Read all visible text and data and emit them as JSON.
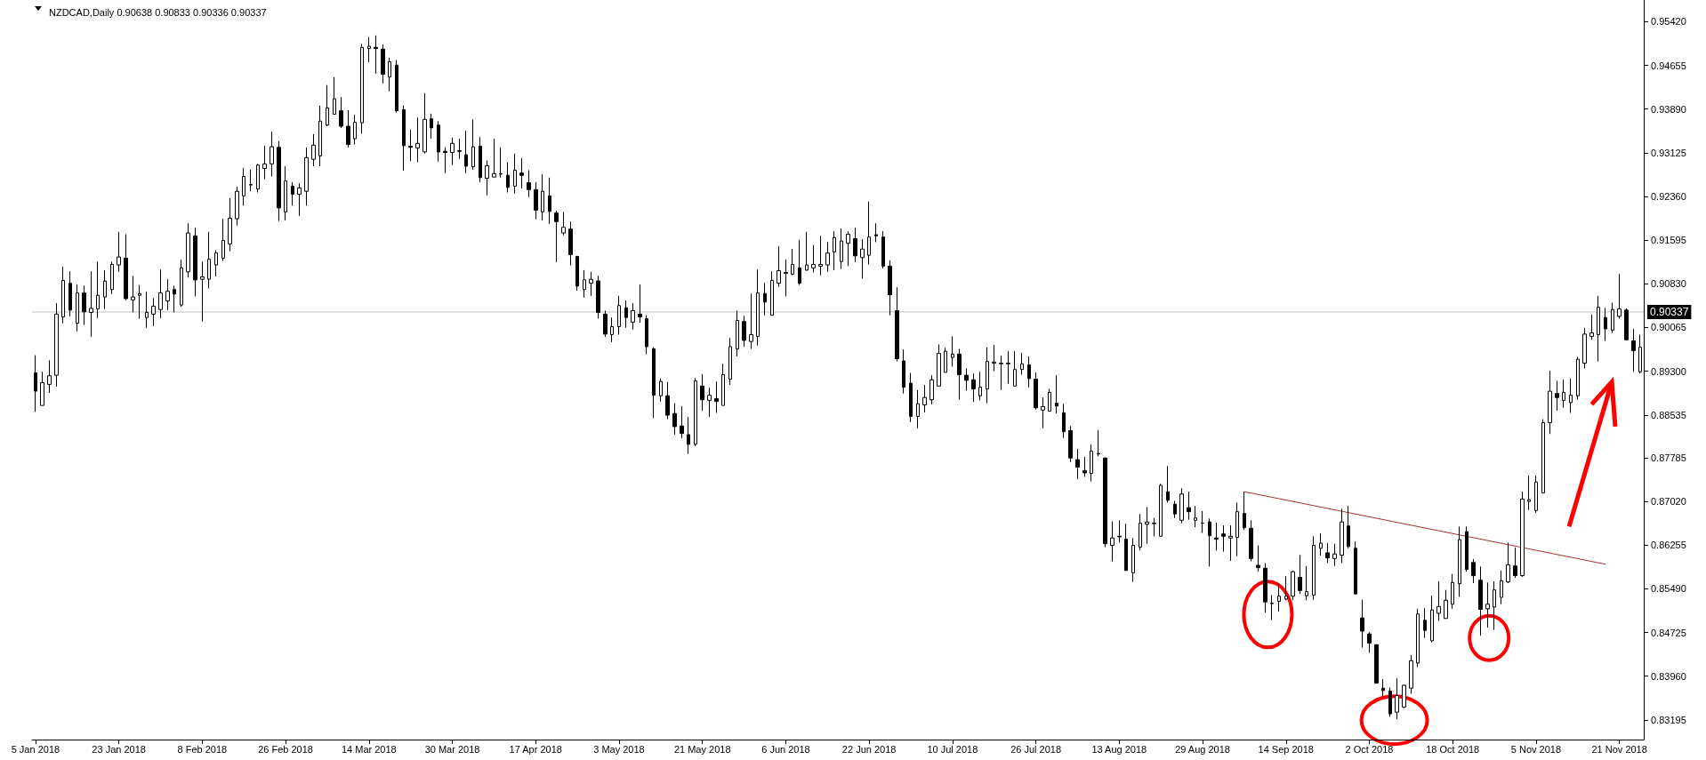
{
  "chart_data": {
    "type": "candlestick",
    "title": "NZDCAD,Daily 0.90638 0.90833 0.90336 0.90337",
    "categories": [
      "5 Jan 2018",
      null,
      null,
      null,
      null,
      null,
      null,
      null,
      null,
      null,
      null,
      null,
      "23 Jan 2018",
      null,
      null,
      null,
      null,
      null,
      null,
      null,
      null,
      null,
      null,
      null,
      "8 Feb 2018",
      null,
      null,
      null,
      null,
      null,
      null,
      null,
      null,
      null,
      null,
      null,
      "26 Feb 2018",
      null,
      null,
      null,
      null,
      null,
      null,
      null,
      null,
      null,
      null,
      null,
      "14 Mar 2018",
      null,
      null,
      null,
      null,
      null,
      null,
      null,
      null,
      null,
      null,
      null,
      "30 Mar 2018",
      null,
      null,
      null,
      null,
      null,
      null,
      null,
      null,
      null,
      null,
      null,
      "17 Apr 2018",
      null,
      null,
      null,
      null,
      null,
      null,
      null,
      null,
      null,
      null,
      null,
      "3 May 2018",
      null,
      null,
      null,
      null,
      null,
      null,
      null,
      null,
      null,
      null,
      null,
      "21 May 2018",
      null,
      null,
      null,
      null,
      null,
      null,
      null,
      null,
      null,
      null,
      null,
      "6 Jun 2018",
      null,
      null,
      null,
      null,
      null,
      null,
      null,
      null,
      null,
      null,
      null,
      "22 Jun 2018",
      null,
      null,
      null,
      null,
      null,
      null,
      null,
      null,
      null,
      null,
      null,
      "10 Jul 2018",
      null,
      null,
      null,
      null,
      null,
      null,
      null,
      null,
      null,
      null,
      null,
      "26 Jul 2018",
      null,
      null,
      null,
      null,
      null,
      null,
      null,
      null,
      null,
      null,
      null,
      "13 Aug 2018",
      null,
      null,
      null,
      null,
      null,
      null,
      null,
      null,
      null,
      null,
      null,
      "29 Aug 2018",
      null,
      null,
      null,
      null,
      null,
      null,
      null,
      null,
      null,
      null,
      null,
      "14 Sep 2018",
      null,
      null,
      null,
      null,
      null,
      null,
      null,
      null,
      null,
      null,
      null,
      "2 Oct 2018",
      null,
      null,
      null,
      null,
      null,
      null,
      null,
      null,
      null,
      null,
      null,
      "18 Oct 2018",
      null,
      null,
      null,
      null,
      null,
      null,
      null,
      null,
      null,
      null,
      null,
      "5 Nov 2018",
      null,
      null,
      null,
      null,
      null,
      null,
      null,
      null,
      null,
      null,
      null,
      "21 Nov 2018",
      null,
      null,
      null
    ],
    "ohlc": [
      [
        0.8927,
        0.8958,
        0.8859,
        0.8895
      ],
      [
        0.887,
        0.8929,
        0.887,
        0.891
      ],
      [
        0.8907,
        0.8949,
        0.8892,
        0.8922
      ],
      [
        0.8923,
        0.9049,
        0.8903,
        0.903
      ],
      [
        0.9025,
        0.9113,
        0.9014,
        0.9089
      ],
      [
        0.9084,
        0.9105,
        0.9026,
        0.9037
      ],
      [
        0.9014,
        0.9082,
        0.9,
        0.9067
      ],
      [
        0.9067,
        0.908,
        0.9011,
        0.9034
      ],
      [
        0.9033,
        0.9105,
        0.899,
        0.904
      ],
      [
        0.9039,
        0.9122,
        0.9023,
        0.9063
      ],
      [
        0.906,
        0.9107,
        0.9039,
        0.9088
      ],
      [
        0.9073,
        0.9122,
        0.9065,
        0.9117
      ],
      [
        0.9116,
        0.9174,
        0.9104,
        0.913
      ],
      [
        0.9128,
        0.917,
        0.9054,
        0.9057
      ],
      [
        0.9055,
        0.9097,
        0.9033,
        0.906
      ],
      [
        0.9063,
        0.9081,
        0.9022,
        0.9066
      ],
      [
        0.9024,
        0.9069,
        0.9006,
        0.9033
      ],
      [
        0.903,
        0.9058,
        0.9009,
        0.9044
      ],
      [
        0.9038,
        0.9108,
        0.9023,
        0.9067
      ],
      [
        0.9053,
        0.9091,
        0.9037,
        0.907
      ],
      [
        0.9073,
        0.908,
        0.9033,
        0.9065
      ],
      [
        0.9046,
        0.9125,
        0.9043,
        0.9111
      ],
      [
        0.9104,
        0.9189,
        0.9094,
        0.9172
      ],
      [
        0.9167,
        0.9181,
        0.9061,
        0.909
      ],
      [
        0.9091,
        0.9122,
        0.9017,
        0.9095
      ],
      [
        0.9091,
        0.9174,
        0.9075,
        0.9126
      ],
      [
        0.9116,
        0.9142,
        0.9096,
        0.9137
      ],
      [
        0.9128,
        0.9197,
        0.9123,
        0.9159
      ],
      [
        0.9153,
        0.9233,
        0.914,
        0.9198
      ],
      [
        0.9197,
        0.9253,
        0.9185,
        0.9245
      ],
      [
        0.9237,
        0.9286,
        0.922,
        0.9271
      ],
      [
        0.9256,
        0.9283,
        0.9245,
        0.9257
      ],
      [
        0.9249,
        0.9293,
        0.9243,
        0.9291
      ],
      [
        0.9285,
        0.9325,
        0.9266,
        0.9293
      ],
      [
        0.9293,
        0.935,
        0.9271,
        0.9323
      ],
      [
        0.9322,
        0.9333,
        0.9193,
        0.9216
      ],
      [
        0.9209,
        0.9289,
        0.9194,
        0.9263
      ],
      [
        0.9254,
        0.9261,
        0.922,
        0.924
      ],
      [
        0.924,
        0.9259,
        0.9202,
        0.9251
      ],
      [
        0.9245,
        0.9322,
        0.922,
        0.9304
      ],
      [
        0.9301,
        0.9345,
        0.9289,
        0.9326
      ],
      [
        0.9307,
        0.9395,
        0.9289,
        0.9368
      ],
      [
        0.9361,
        0.9431,
        0.9359,
        0.9391
      ],
      [
        0.938,
        0.9445,
        0.938,
        0.9407
      ],
      [
        0.9386,
        0.941,
        0.9356,
        0.9359
      ],
      [
        0.9359,
        0.9387,
        0.9322,
        0.9327
      ],
      [
        0.9337,
        0.9379,
        0.9327,
        0.9366
      ],
      [
        0.9365,
        0.9503,
        0.9346,
        0.9497
      ],
      [
        0.9495,
        0.9515,
        0.9471,
        0.9499
      ],
      [
        0.9497,
        0.9518,
        0.9451,
        0.9495
      ],
      [
        0.9494,
        0.9502,
        0.9434,
        0.945
      ],
      [
        0.9445,
        0.9479,
        0.942,
        0.9472
      ],
      [
        0.9466,
        0.9475,
        0.9383,
        0.9386
      ],
      [
        0.9388,
        0.9395,
        0.9281,
        0.9325
      ],
      [
        0.9324,
        0.9353,
        0.9298,
        0.9322
      ],
      [
        0.9321,
        0.9374,
        0.9296,
        0.9329
      ],
      [
        0.9314,
        0.9417,
        0.9311,
        0.9371
      ],
      [
        0.9372,
        0.9381,
        0.9337,
        0.9356
      ],
      [
        0.9361,
        0.9368,
        0.9297,
        0.9314
      ],
      [
        0.9315,
        0.9322,
        0.9277,
        0.9313
      ],
      [
        0.9313,
        0.9339,
        0.9291,
        0.9329
      ],
      [
        0.9316,
        0.9337,
        0.9302,
        0.9315
      ],
      [
        0.9309,
        0.9351,
        0.9277,
        0.9289
      ],
      [
        0.9288,
        0.9371,
        0.9283,
        0.9323
      ],
      [
        0.9324,
        0.934,
        0.9261,
        0.9269
      ],
      [
        0.9268,
        0.9299,
        0.9238,
        0.929
      ],
      [
        0.927,
        0.9337,
        0.927,
        0.9276
      ],
      [
        0.9275,
        0.9322,
        0.9269,
        0.9276
      ],
      [
        0.9273,
        0.9296,
        0.9243,
        0.9252
      ],
      [
        0.9254,
        0.9311,
        0.9241,
        0.9282
      ],
      [
        0.9277,
        0.9303,
        0.925,
        0.9273
      ],
      [
        0.926,
        0.9282,
        0.9235,
        0.9248
      ],
      [
        0.9248,
        0.9261,
        0.9196,
        0.9212
      ],
      [
        0.9209,
        0.9275,
        0.9194,
        0.9245
      ],
      [
        0.9237,
        0.9269,
        0.9188,
        0.921
      ],
      [
        0.9207,
        0.9211,
        0.9121,
        0.9192
      ],
      [
        0.9172,
        0.9209,
        0.9168,
        0.9182
      ],
      [
        0.9179,
        0.9192,
        0.9115,
        0.9134
      ],
      [
        0.9131,
        0.9132,
        0.9071,
        0.9079
      ],
      [
        0.9073,
        0.9107,
        0.9059,
        0.909
      ],
      [
        0.9084,
        0.9104,
        0.9062,
        0.9091
      ],
      [
        0.9088,
        0.9097,
        0.9022,
        0.9033
      ],
      [
        0.903,
        0.9036,
        0.899,
        0.8995
      ],
      [
        0.8994,
        0.9024,
        0.8981,
        0.9008
      ],
      [
        0.9008,
        0.9062,
        0.8994,
        0.9045
      ],
      [
        0.9041,
        0.9054,
        0.9006,
        0.9024
      ],
      [
        0.9016,
        0.9049,
        0.9003,
        0.9036
      ],
      [
        0.903,
        0.9082,
        0.9015,
        0.9025
      ],
      [
        0.9022,
        0.9028,
        0.896,
        0.8973
      ],
      [
        0.8969,
        0.8972,
        0.8848,
        0.8888
      ],
      [
        0.8887,
        0.8917,
        0.8877,
        0.8912
      ],
      [
        0.8887,
        0.8911,
        0.8846,
        0.8853
      ],
      [
        0.8856,
        0.8874,
        0.8819,
        0.8833
      ],
      [
        0.8834,
        0.8869,
        0.8813,
        0.8821
      ],
      [
        0.8819,
        0.885,
        0.8785,
        0.8802
      ],
      [
        0.8802,
        0.8918,
        0.8799,
        0.8913
      ],
      [
        0.8904,
        0.8925,
        0.8861,
        0.888
      ],
      [
        0.8879,
        0.8901,
        0.885,
        0.8888
      ],
      [
        0.8882,
        0.8912,
        0.8857,
        0.8877
      ],
      [
        0.887,
        0.8943,
        0.887,
        0.8924
      ],
      [
        0.8916,
        0.8988,
        0.8906,
        0.8973
      ],
      [
        0.8969,
        0.9036,
        0.8956,
        0.9019
      ],
      [
        0.9017,
        0.9027,
        0.8973,
        0.8984
      ],
      [
        0.8982,
        0.9066,
        0.8969,
        0.8994
      ],
      [
        0.8991,
        0.9108,
        0.8975,
        0.9067
      ],
      [
        0.9066,
        0.9085,
        0.9028,
        0.9051
      ],
      [
        0.9028,
        0.9105,
        0.9028,
        0.9089
      ],
      [
        0.9084,
        0.9149,
        0.9078,
        0.9106
      ],
      [
        0.9101,
        0.9126,
        0.9061,
        0.9103
      ],
      [
        0.91,
        0.9144,
        0.9098,
        0.9117
      ],
      [
        0.9111,
        0.916,
        0.9081,
        0.9084
      ],
      [
        0.9107,
        0.9174,
        0.9106,
        0.9116
      ],
      [
        0.9111,
        0.9151,
        0.9103,
        0.9117
      ],
      [
        0.9114,
        0.9167,
        0.9098,
        0.9117
      ],
      [
        0.9116,
        0.9156,
        0.9104,
        0.9137
      ],
      [
        0.9139,
        0.9175,
        0.9107,
        0.9164
      ],
      [
        0.9122,
        0.918,
        0.9109,
        0.9158
      ],
      [
        0.9154,
        0.9175,
        0.9114,
        0.917
      ],
      [
        0.9162,
        0.9181,
        0.9121,
        0.9132
      ],
      [
        0.9129,
        0.9161,
        0.9092,
        0.9144
      ],
      [
        0.9133,
        0.9227,
        0.9117,
        0.9165
      ],
      [
        0.9169,
        0.9189,
        0.9156,
        0.9167
      ],
      [
        0.9165,
        0.9175,
        0.911,
        0.9114
      ],
      [
        0.9114,
        0.9124,
        0.9028,
        0.9064
      ],
      [
        0.9036,
        0.9077,
        0.8947,
        0.8952
      ],
      [
        0.8948,
        0.8968,
        0.8891,
        0.8902
      ],
      [
        0.8909,
        0.8927,
        0.8841,
        0.8851
      ],
      [
        0.8851,
        0.8897,
        0.883,
        0.8873
      ],
      [
        0.8871,
        0.8906,
        0.8858,
        0.8884
      ],
      [
        0.888,
        0.8923,
        0.8872,
        0.8915
      ],
      [
        0.8904,
        0.8977,
        0.8904,
        0.8961
      ],
      [
        0.8928,
        0.8971,
        0.8928,
        0.8965
      ],
      [
        0.8954,
        0.8991,
        0.8938,
        0.896
      ],
      [
        0.896,
        0.8969,
        0.888,
        0.8924
      ],
      [
        0.8923,
        0.8935,
        0.8896,
        0.8914
      ],
      [
        0.8915,
        0.8926,
        0.8876,
        0.8899
      ],
      [
        0.8887,
        0.8929,
        0.8879,
        0.8902
      ],
      [
        0.8899,
        0.8972,
        0.8874,
        0.8947
      ],
      [
        0.8944,
        0.8976,
        0.893,
        0.8946
      ],
      [
        0.8943,
        0.8957,
        0.8897,
        0.8944
      ],
      [
        0.8944,
        0.8965,
        0.8908,
        0.8943
      ],
      [
        0.8904,
        0.8965,
        0.8904,
        0.8933
      ],
      [
        0.8933,
        0.8962,
        0.8924,
        0.8943
      ],
      [
        0.8941,
        0.8956,
        0.8902,
        0.8917
      ],
      [
        0.8916,
        0.8928,
        0.8863,
        0.8866
      ],
      [
        0.8862,
        0.8884,
        0.883,
        0.8868
      ],
      [
        0.886,
        0.8899,
        0.886,
        0.8893
      ],
      [
        0.8874,
        0.8923,
        0.8856,
        0.8869
      ],
      [
        0.8857,
        0.8873,
        0.8813,
        0.8824
      ],
      [
        0.8826,
        0.8834,
        0.8771,
        0.8778
      ],
      [
        0.8775,
        0.8794,
        0.8741,
        0.8762
      ],
      [
        0.8756,
        0.878,
        0.8745,
        0.8752
      ],
      [
        0.8751,
        0.8802,
        0.8737,
        0.879
      ],
      [
        0.8785,
        0.8827,
        0.8781,
        0.8786
      ],
      [
        0.8778,
        0.8779,
        0.8622,
        0.8628
      ],
      [
        0.8625,
        0.8667,
        0.8597,
        0.8638
      ],
      [
        0.864,
        0.8669,
        0.863,
        0.8641
      ],
      [
        0.8636,
        0.8663,
        0.8581,
        0.8581
      ],
      [
        0.8577,
        0.8638,
        0.8561,
        0.8625
      ],
      [
        0.8622,
        0.868,
        0.8616,
        0.8664
      ],
      [
        0.8662,
        0.8692,
        0.8628,
        0.8666
      ],
      [
        0.8663,
        0.8673,
        0.8641,
        0.8664
      ],
      [
        0.8641,
        0.8733,
        0.8641,
        0.873
      ],
      [
        0.8719,
        0.8764,
        0.87,
        0.8704
      ],
      [
        0.8697,
        0.8703,
        0.8673,
        0.868
      ],
      [
        0.8669,
        0.8725,
        0.8664,
        0.8715
      ],
      [
        0.8691,
        0.8719,
        0.867,
        0.8684
      ],
      [
        0.8669,
        0.8694,
        0.8657,
        0.8673
      ],
      [
        0.8664,
        0.8685,
        0.8647,
        0.8664
      ],
      [
        0.8666,
        0.8672,
        0.8588,
        0.8642
      ],
      [
        0.8638,
        0.8665,
        0.8616,
        0.8636
      ],
      [
        0.8645,
        0.866,
        0.8614,
        0.8641
      ],
      [
        0.8638,
        0.866,
        0.8598,
        0.8641
      ],
      [
        0.8639,
        0.87,
        0.8606,
        0.8684
      ],
      [
        0.8681,
        0.8719,
        0.8652,
        0.8656
      ],
      [
        0.8655,
        0.8669,
        0.8597,
        0.8602
      ],
      [
        0.859,
        0.8625,
        0.8579,
        0.8586
      ],
      [
        0.8585,
        0.8594,
        0.8507,
        0.8526
      ],
      [
        0.8524,
        0.8538,
        0.8494,
        0.8523
      ],
      [
        0.8527,
        0.8558,
        0.8509,
        0.8536
      ],
      [
        0.8531,
        0.8571,
        0.8529,
        0.8536
      ],
      [
        0.8536,
        0.8581,
        0.8529,
        0.8579
      ],
      [
        0.8569,
        0.8608,
        0.854,
        0.8546
      ],
      [
        0.8537,
        0.8589,
        0.8529,
        0.8544
      ],
      [
        0.8538,
        0.8641,
        0.853,
        0.8625
      ],
      [
        0.862,
        0.8646,
        0.8607,
        0.8629
      ],
      [
        0.8612,
        0.8629,
        0.8594,
        0.8603
      ],
      [
        0.8602,
        0.8628,
        0.8589,
        0.861
      ],
      [
        0.8608,
        0.8689,
        0.8594,
        0.8666
      ],
      [
        0.8659,
        0.8694,
        0.862,
        0.8623
      ],
      [
        0.862,
        0.8632,
        0.854,
        0.854
      ],
      [
        0.8498,
        0.853,
        0.8446,
        0.8475
      ],
      [
        0.847,
        0.8473,
        0.8437,
        0.8454
      ],
      [
        0.8451,
        0.8452,
        0.8384,
        0.8384
      ],
      [
        0.8375,
        0.8391,
        0.8361,
        0.8371
      ],
      [
        0.837,
        0.8376,
        0.8325,
        0.833
      ],
      [
        0.8333,
        0.8392,
        0.8321,
        0.8362
      ],
      [
        0.8342,
        0.8381,
        0.834,
        0.838
      ],
      [
        0.8375,
        0.8433,
        0.8365,
        0.8423
      ],
      [
        0.8419,
        0.8514,
        0.8412,
        0.8505
      ],
      [
        0.8494,
        0.8515,
        0.8463,
        0.8476
      ],
      [
        0.8458,
        0.8537,
        0.8455,
        0.8512
      ],
      [
        0.8506,
        0.8562,
        0.8493,
        0.8518
      ],
      [
        0.8497,
        0.8547,
        0.8497,
        0.8529
      ],
      [
        0.8522,
        0.8575,
        0.8514,
        0.856
      ],
      [
        0.8558,
        0.8658,
        0.8535,
        0.8635
      ],
      [
        0.8649,
        0.8658,
        0.8579,
        0.8583
      ],
      [
        0.8595,
        0.8601,
        0.8559,
        0.8572
      ],
      [
        0.8564,
        0.8588,
        0.8467,
        0.8513
      ],
      [
        0.8514,
        0.856,
        0.8481,
        0.8522
      ],
      [
        0.8517,
        0.8562,
        0.8477,
        0.8547
      ],
      [
        0.8534,
        0.8581,
        0.8522,
        0.8563
      ],
      [
        0.8561,
        0.863,
        0.8559,
        0.8591
      ],
      [
        0.8589,
        0.8621,
        0.8568,
        0.8572
      ],
      [
        0.8572,
        0.8719,
        0.857,
        0.8706
      ],
      [
        0.8702,
        0.8747,
        0.8687,
        0.8705
      ],
      [
        0.8686,
        0.8747,
        0.8682,
        0.8736
      ],
      [
        0.8717,
        0.8846,
        0.8716,
        0.884
      ],
      [
        0.884,
        0.8931,
        0.882,
        0.8895
      ],
      [
        0.8891,
        0.8913,
        0.8861,
        0.8884
      ],
      [
        0.8879,
        0.8915,
        0.8866,
        0.8893
      ],
      [
        0.8875,
        0.8917,
        0.8857,
        0.8888
      ],
      [
        0.8887,
        0.8955,
        0.888,
        0.8951
      ],
      [
        0.8944,
        0.9006,
        0.8935,
        0.8995
      ],
      [
        0.8991,
        0.9029,
        0.8985,
        0.8997
      ],
      [
        0.8994,
        0.9062,
        0.8947,
        0.9042
      ],
      [
        0.9024,
        0.9041,
        0.8983,
        0.9004
      ],
      [
        0.9002,
        0.905,
        0.8997,
        0.9038
      ],
      [
        0.9026,
        0.91,
        0.9022,
        0.9039
      ],
      [
        0.9037,
        0.904,
        0.8985,
        0.8985
      ],
      [
        0.8983,
        0.9004,
        0.8929,
        0.8966
      ],
      [
        0.8929,
        0.8994,
        0.8926,
        0.8972
      ]
    ],
    "series": [
      {
        "type": "line",
        "color": "#b03030",
        "values": [
          null,
          null,
          null,
          null,
          null,
          null,
          null,
          null,
          null,
          null,
          null,
          null,
          null,
          null,
          null,
          null,
          null,
          null,
          null,
          null,
          null,
          null,
          null,
          null,
          null,
          null,
          null,
          null,
          null,
          null,
          null,
          null,
          null,
          null,
          null,
          null,
          null,
          null,
          null,
          null,
          null,
          null,
          null,
          null,
          null,
          null,
          null,
          null,
          null,
          null,
          null,
          null,
          null,
          null,
          null,
          null,
          null,
          null,
          null,
          null,
          null,
          null,
          null,
          null,
          null,
          null,
          null,
          null,
          null,
          null,
          null,
          null,
          null,
          null,
          null,
          null,
          null,
          null,
          null,
          null,
          null,
          null,
          null,
          null,
          null,
          null,
          null,
          null,
          null,
          null,
          null,
          null,
          null,
          null,
          null,
          null,
          null,
          null,
          null,
          null,
          null,
          null,
          null,
          null,
          null,
          null,
          null,
          null,
          null,
          null,
          null,
          null,
          null,
          null,
          null,
          null,
          null,
          null,
          null,
          null,
          null,
          null,
          null,
          null,
          null,
          null,
          null,
          null,
          null,
          null,
          null,
          null,
          null,
          null,
          null,
          null,
          null,
          null,
          null,
          null,
          null,
          null,
          null,
          null,
          null,
          null,
          null,
          null,
          null,
          null,
          null,
          null,
          null,
          null,
          null,
          null,
          null,
          null,
          null,
          null,
          null,
          null,
          null,
          null,
          null,
          null,
          null,
          null,
          null,
          null,
          null,
          null,
          null,
          null,
          0.8719,
          null,
          null,
          null,
          null,
          null,
          null,
          null,
          null,
          null,
          null,
          null,
          null,
          null,
          null,
          null,
          null,
          null,
          null,
          null,
          null,
          null,
          null,
          null,
          null,
          null,
          null,
          null,
          null,
          null,
          null,
          null,
          null,
          null,
          null,
          null,
          null,
          null,
          null,
          null,
          null,
          null,
          null,
          null,
          null,
          null,
          null,
          null,
          null,
          null,
          null,
          null,
          0.8592,
          null,
          null,
          null,
          null,
          null
        ]
      }
    ],
    "ylim": [
      0.8285,
      0.958
    ],
    "yticks": [
      {
        "value": 0.9542,
        "label": "0.95420"
      },
      0.94655,
      {
        "value": 0.9389,
        "label": "0.93890"
      },
      0.93125,
      {
        "value": 0.9236,
        "label": "0.92360"
      },
      0.91595,
      {
        "value": 0.9083,
        "label": "0.90830"
      },
      0.90065,
      {
        "value": 0.893,
        "label": "0.89300"
      },
      0.88535,
      0.87785,
      {
        "value": 0.8702,
        "label": "0.87020"
      },
      0.86255,
      {
        "value": 0.8549,
        "label": "0.85490"
      },
      0.84725,
      {
        "value": 0.8396,
        "label": "0.83960"
      },
      0.83195
    ],
    "ref_lines": [
      {
        "axis": "y",
        "value": 0.90337,
        "label": "0.90337",
        "color": "#c0c0c0"
      }
    ],
    "grid": false
  }
}
